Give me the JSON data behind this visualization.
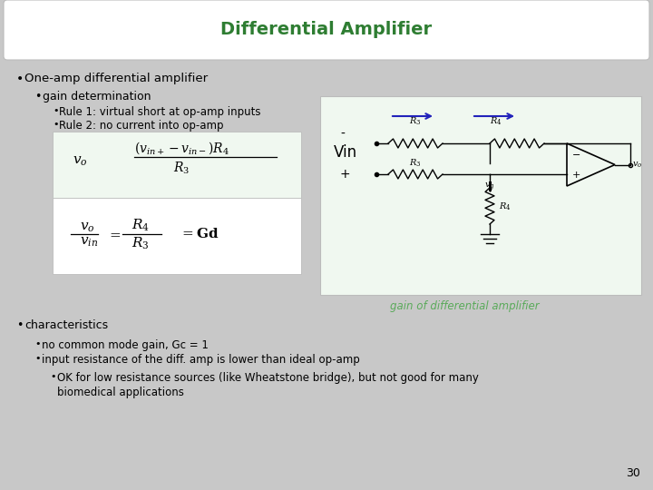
{
  "title": "Differential Amplifier",
  "title_color": "#2e7d32",
  "bg_color": "#c8c8c8",
  "header_bg": "#ffffff",
  "formula1_box_color": "#f0f8f0",
  "formula2_box_color": "#ffffff",
  "circuit_box_color": "#f0f8f0",
  "bullet1": "One-amp differential amplifier",
  "bullet2": "gain determination",
  "bullet3a": "Rule 1: virtual short at op-amp inputs",
  "bullet3b": "Rule 2: no current into op-amp",
  "gain_label": "gain of differential amplifier",
  "gain_label_color": "#5aaa5a",
  "bullet4": "characteristics",
  "bullet5a": "no common mode gain, Gc = 1",
  "bullet5b": "input resistance of the diff. amp is lower than ideal op-amp",
  "bullet6a": "OK for low resistance sources (like Wheatstone bridge), but not good for many",
  "bullet6b": "biomedical applications",
  "page_num": "30",
  "vin_label": "Vin",
  "vin_plus": "+",
  "vin_minus": "-"
}
